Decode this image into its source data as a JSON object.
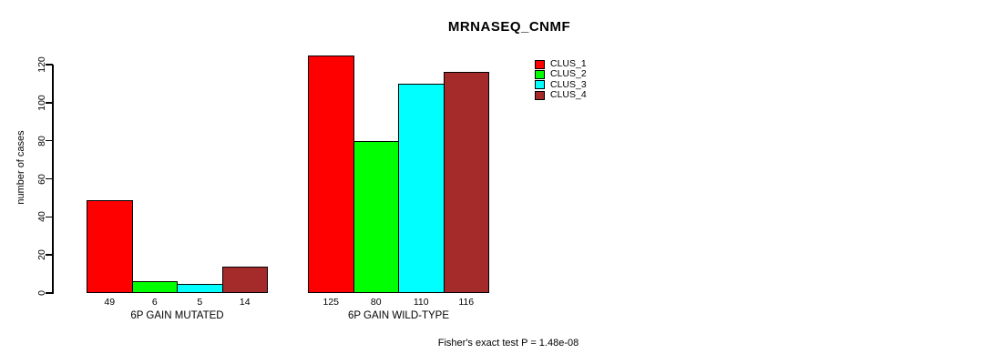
{
  "title": "MRNASEQ_CNMF",
  "footer": "Fisher's exact test P = 1.48e-08",
  "colors": {
    "background": "#FFFFFF",
    "axis": "#000000",
    "text": "#000000",
    "clus_1": "#FF0000",
    "clus_2": "#00FF00",
    "clus_3": "#00FFFF",
    "clus_4": "#A52A2A"
  },
  "chart_data": {
    "type": "bar",
    "title": "MRNASEQ_CNMF",
    "xlabel": "",
    "ylabel": "number of cases",
    "ylim": [
      0,
      120
    ],
    "yticks": [
      0,
      20,
      40,
      60,
      80,
      100,
      120
    ],
    "grid": false,
    "legend_position": "top-right",
    "categories": [
      "6P GAIN MUTATED",
      "6P GAIN WILD-TYPE"
    ],
    "series": [
      {
        "name": "CLUS_1",
        "color": "#FF0000",
        "values": [
          49,
          125
        ]
      },
      {
        "name": "CLUS_2",
        "color": "#00FF00",
        "values": [
          6,
          80
        ]
      },
      {
        "name": "CLUS_3",
        "color": "#00FFFF",
        "values": [
          5,
          110
        ]
      },
      {
        "name": "CLUS_4",
        "color": "#A52A2A",
        "values": [
          14,
          116
        ]
      }
    ],
    "bar_value_labels": [
      [
        49,
        6,
        5,
        14
      ],
      [
        125,
        80,
        110,
        116
      ]
    ],
    "annotation": "Fisher's exact test P = 1.48e-08"
  }
}
